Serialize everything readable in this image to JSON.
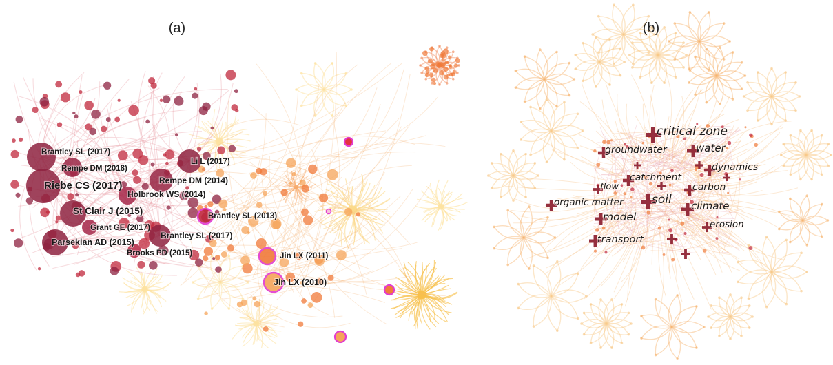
{
  "panels": {
    "a": {
      "label": "(a)",
      "nodes": [
        {
          "text": "Brantley SL (2017)"
        },
        {
          "text": "Li L (2017)"
        },
        {
          "text": "Rempe DM (2018)"
        },
        {
          "text": "Riebe CS (2017)"
        },
        {
          "text": "Rempe DM (2014)"
        },
        {
          "text": "Holbrook WS (2014)"
        },
        {
          "text": "St Clair J (2015)"
        },
        {
          "text": "Brantley SL (2013)"
        },
        {
          "text": "Grant GE (2017)"
        },
        {
          "text": "Brantley SL (2017)"
        },
        {
          "text": "Parsekian AD (2015)"
        },
        {
          "text": "Brooks PD (2015)"
        },
        {
          "text": "Jin LX (2011)"
        },
        {
          "text": "Jin LX (2010)"
        }
      ]
    },
    "b": {
      "label": "(b)",
      "keywords": [
        {
          "text": "critical zone"
        },
        {
          "text": "groundwater"
        },
        {
          "text": "water"
        },
        {
          "text": "dynamics"
        },
        {
          "text": "catchment"
        },
        {
          "text": "flow"
        },
        {
          "text": "carbon"
        },
        {
          "text": "organic matter"
        },
        {
          "text": "soil"
        },
        {
          "text": "climate"
        },
        {
          "text": "model"
        },
        {
          "text": "erosion"
        },
        {
          "text": "transport"
        }
      ]
    }
  },
  "colors": {
    "dark_node": "#8e2240",
    "red_node": "#c0283c",
    "orange_node": "#f07a3a",
    "yellow_cluster": "#f8c04a",
    "pale_cluster": "#fde2a0",
    "edge_red": "#e79aa2",
    "edge_orange": "#f5b77a",
    "highlight_ring": "#e23bd0",
    "keyword_cross": "#8a1a2a"
  }
}
